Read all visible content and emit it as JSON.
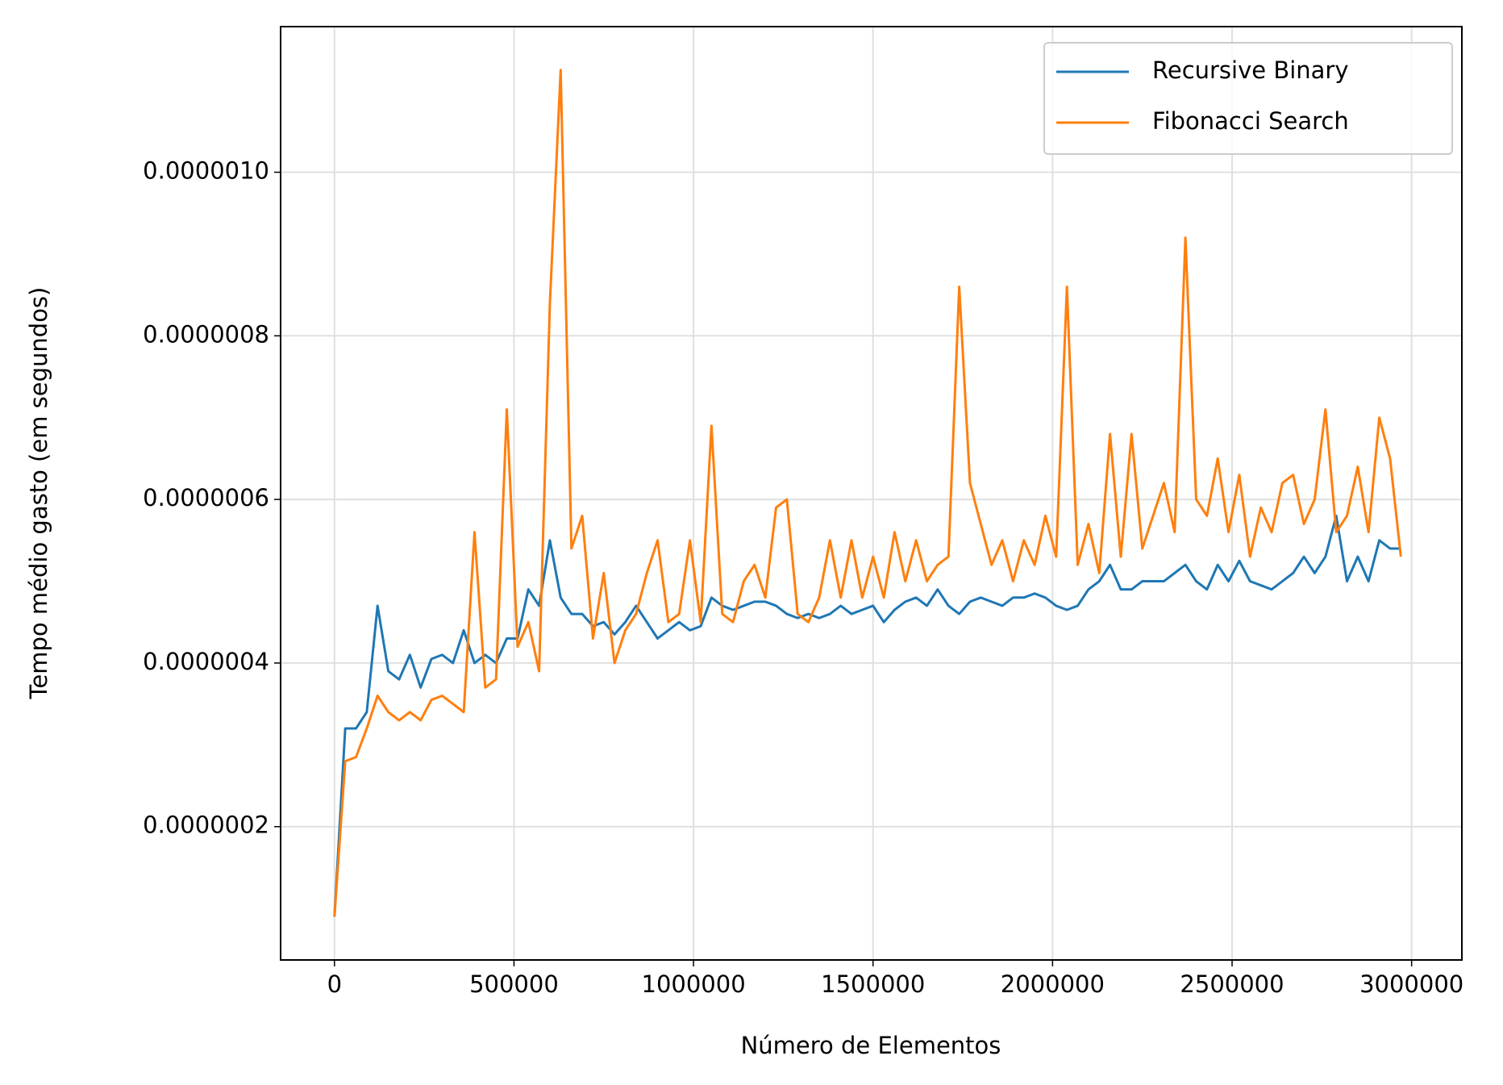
{
  "chart_data": {
    "type": "line",
    "xlabel": "Número de Elementos",
    "ylabel": "Tempo médio gasto (em segundos)",
    "x": [
      0,
      30000,
      60000,
      90000,
      120000,
      150000,
      180000,
      210000,
      240000,
      270000,
      300000,
      330000,
      360000,
      390000,
      420000,
      450000,
      480000,
      510000,
      540000,
      570000,
      600000,
      630000,
      660000,
      690000,
      720000,
      750000,
      780000,
      810000,
      840000,
      870000,
      900000,
      930000,
      960000,
      990000,
      1020000,
      1050000,
      1080000,
      1110000,
      1140000,
      1170000,
      1200000,
      1230000,
      1260000,
      1290000,
      1320000,
      1350000,
      1380000,
      1410000,
      1440000,
      1470000,
      1500000,
      1530000,
      1560000,
      1590000,
      1620000,
      1650000,
      1680000,
      1710000,
      1740000,
      1770000,
      1800000,
      1830000,
      1860000,
      1890000,
      1920000,
      1950000,
      1980000,
      2010000,
      2040000,
      2070000,
      2100000,
      2130000,
      2160000,
      2190000,
      2220000,
      2250000,
      2280000,
      2310000,
      2340000,
      2370000,
      2400000,
      2430000,
      2460000,
      2490000,
      2520000,
      2550000,
      2580000,
      2610000,
      2640000,
      2670000,
      2700000,
      2730000,
      2760000,
      2790000,
      2820000,
      2850000,
      2880000,
      2910000,
      2940000,
      2970000
    ],
    "series": [
      {
        "name": "Recursive Binary",
        "color": "#1f77b4",
        "values": [
          9e-08,
          3.2e-07,
          3.2e-07,
          3.4e-07,
          4.7e-07,
          3.9e-07,
          3.8e-07,
          4.1e-07,
          3.7e-07,
          4.05e-07,
          4.1e-07,
          4e-07,
          4.4e-07,
          4e-07,
          4.1e-07,
          4e-07,
          4.3e-07,
          4.3e-07,
          4.9e-07,
          4.7e-07,
          5.5e-07,
          4.8e-07,
          4.6e-07,
          4.6e-07,
          4.45e-07,
          4.5e-07,
          4.35e-07,
          4.5e-07,
          4.7e-07,
          4.5e-07,
          4.3e-07,
          4.4e-07,
          4.5e-07,
          4.4e-07,
          4.45e-07,
          4.8e-07,
          4.7e-07,
          4.65e-07,
          4.7e-07,
          4.75e-07,
          4.75e-07,
          4.7e-07,
          4.6e-07,
          4.55e-07,
          4.6e-07,
          4.55e-07,
          4.6e-07,
          4.7e-07,
          4.6e-07,
          4.65e-07,
          4.7e-07,
          4.5e-07,
          4.65e-07,
          4.75e-07,
          4.8e-07,
          4.7e-07,
          4.9e-07,
          4.7e-07,
          4.6e-07,
          4.75e-07,
          4.8e-07,
          4.75e-07,
          4.7e-07,
          4.8e-07,
          4.8e-07,
          4.85e-07,
          4.8e-07,
          4.7e-07,
          4.65e-07,
          4.7e-07,
          4.9e-07,
          5e-07,
          5.2e-07,
          4.9e-07,
          4.9e-07,
          5e-07,
          5e-07,
          5e-07,
          5.1e-07,
          5.2e-07,
          5e-07,
          4.9e-07,
          5.2e-07,
          5e-07,
          5.25e-07,
          5e-07,
          4.95e-07,
          4.9e-07,
          5e-07,
          5.1e-07,
          5.3e-07,
          5.1e-07,
          5.3e-07,
          5.8e-07,
          5e-07,
          5.3e-07,
          5e-07,
          5.5e-07,
          5.4e-07,
          5.4e-07
        ]
      },
      {
        "name": "Fibonacci Search",
        "color": "#ff7f0e",
        "values": [
          9e-08,
          2.8e-07,
          2.85e-07,
          3.2e-07,
          3.6e-07,
          3.4e-07,
          3.3e-07,
          3.4e-07,
          3.3e-07,
          3.55e-07,
          3.6e-07,
          3.5e-07,
          3.4e-07,
          5.6e-07,
          3.7e-07,
          3.8e-07,
          7.1e-07,
          4.2e-07,
          4.5e-07,
          3.9e-07,
          8.4e-07,
          1.125e-06,
          5.4e-07,
          5.8e-07,
          4.3e-07,
          5.1e-07,
          4e-07,
          4.4e-07,
          4.6e-07,
          5.1e-07,
          5.5e-07,
          4.5e-07,
          4.6e-07,
          5.5e-07,
          4.5e-07,
          6.9e-07,
          4.6e-07,
          4.5e-07,
          5e-07,
          5.2e-07,
          4.8e-07,
          5.9e-07,
          6e-07,
          4.6e-07,
          4.5e-07,
          4.8e-07,
          5.5e-07,
          4.8e-07,
          5.5e-07,
          4.8e-07,
          5.3e-07,
          4.8e-07,
          5.6e-07,
          5e-07,
          5.5e-07,
          5e-07,
          5.2e-07,
          5.3e-07,
          8.6e-07,
          6.2e-07,
          5.7e-07,
          5.2e-07,
          5.5e-07,
          5e-07,
          5.5e-07,
          5.2e-07,
          5.8e-07,
          5.3e-07,
          8.6e-07,
          5.2e-07,
          5.7e-07,
          5.1e-07,
          6.8e-07,
          5.3e-07,
          6.8e-07,
          5.4e-07,
          5.8e-07,
          6.2e-07,
          5.6e-07,
          9.2e-07,
          6e-07,
          5.8e-07,
          6.5e-07,
          5.6e-07,
          6.3e-07,
          5.3e-07,
          5.9e-07,
          5.6e-07,
          6.2e-07,
          6.3e-07,
          5.7e-07,
          6e-07,
          7.1e-07,
          5.6e-07,
          5.8e-07,
          6.4e-07,
          5.6e-07,
          7e-07,
          6.5e-07,
          5.3e-07
        ]
      }
    ],
    "xlim": [
      -150000,
      3140000
    ],
    "xticks": [
      0,
      500000,
      1000000,
      1500000,
      2000000,
      2500000,
      3000000
    ],
    "ylim": [
      3.7e-08,
      1.178e-06
    ],
    "yticks": [
      {
        "value": 2e-07,
        "label": "0.0000002"
      },
      {
        "value": 4e-07,
        "label": "0.0000004"
      },
      {
        "value": 6e-07,
        "label": "0.0000006"
      },
      {
        "value": 8e-07,
        "label": "0.0000008"
      },
      {
        "value": 1e-06,
        "label": "0.0000010"
      }
    ],
    "grid": true,
    "legend": "upper right"
  }
}
